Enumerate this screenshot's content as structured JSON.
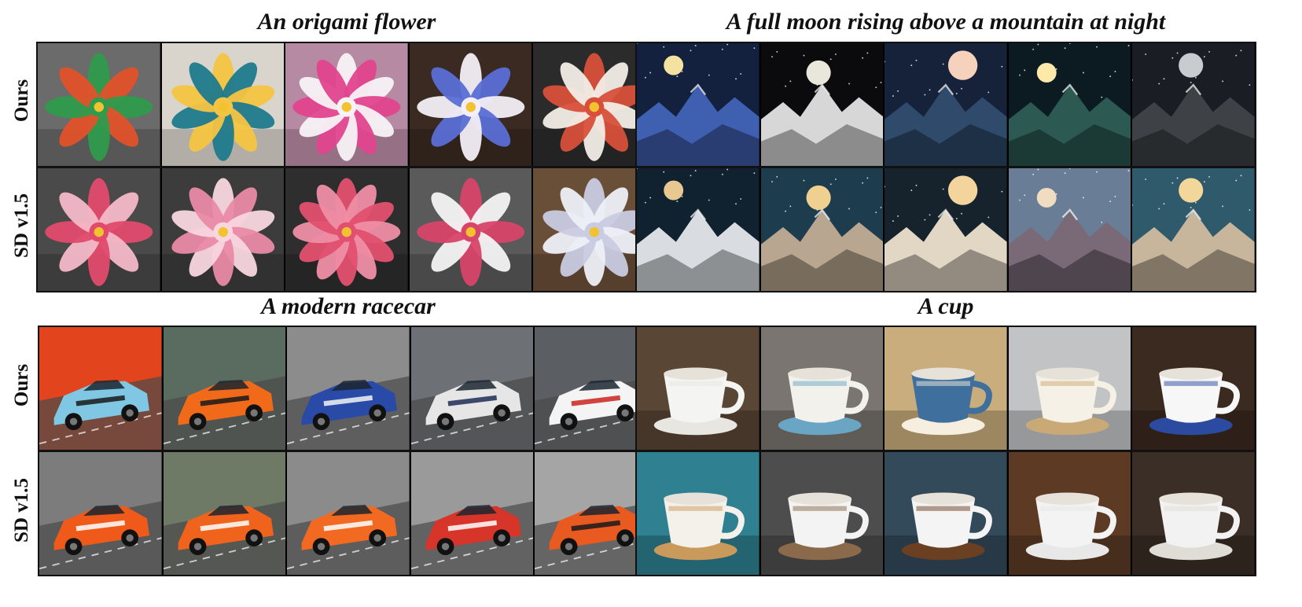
{
  "row_labels": {
    "ours": "Ours",
    "baseline": "SD v1.5"
  },
  "panels": [
    {
      "title": "An origami flower",
      "subject": "flower",
      "ours": [
        {
          "bg": "#6b6b6b",
          "fg": "#e0522a",
          "fg2": "#2f9b4d"
        },
        {
          "bg": "#d9d4cc",
          "fg": "#1f7a8c",
          "fg2": "#f4c542"
        },
        {
          "bg": "#b78aa4",
          "fg": "#e0448e",
          "fg2": "#f7f2f5"
        },
        {
          "bg": "#3a2a22",
          "fg": "#5a6fd6",
          "fg2": "#f3eef7"
        },
        {
          "bg": "#2b2b2b",
          "fg": "#f2ede6",
          "fg2": "#d8503a"
        }
      ],
      "baseline": [
        {
          "bg": "#4a4a4a",
          "fg": "#f4b8c8",
          "fg2": "#e24a6b"
        },
        {
          "bg": "#3c3c3c",
          "fg": "#e98aa6",
          "fg2": "#f8d6df"
        },
        {
          "bg": "#2e2e2e",
          "fg": "#ef8ea7",
          "fg2": "#e2506f"
        },
        {
          "bg": "#5a5a5a",
          "fg": "#f4f4f4",
          "fg2": "#d8456a"
        },
        {
          "bg": "#6a4f38",
          "fg": "#eef0f8",
          "fg2": "#c9cbe0"
        }
      ]
    },
    {
      "title": "A full moon rising above a mountain at night",
      "subject": "moon",
      "ours": [
        {
          "bg": "#13213f",
          "fg": "#3f5fb0",
          "fg2": "#f4e2a0"
        },
        {
          "bg": "#0b0b0d",
          "fg": "#d7d7d7",
          "fg2": "#e9e6dc"
        },
        {
          "bg": "#16213a",
          "fg": "#2f4a6b",
          "fg2": "#f6d2bc"
        },
        {
          "bg": "#0c1a22",
          "fg": "#2c5a52",
          "fg2": "#ffe9a8"
        },
        {
          "bg": "#1a1e24",
          "fg": "#3e4247",
          "fg2": "#c8ccd0"
        }
      ],
      "baseline": [
        {
          "bg": "#102230",
          "fg": "#d9dde2",
          "fg2": "#e8c890"
        },
        {
          "bg": "#1d3c4d",
          "fg": "#b8a690",
          "fg2": "#f0d090"
        },
        {
          "bg": "#16232d",
          "fg": "#e2d6c4",
          "fg2": "#f2d49c"
        },
        {
          "bg": "#6a7d96",
          "fg": "#7a6a78",
          "fg2": "#f0dcc0"
        },
        {
          "bg": "#2f5a6c",
          "fg": "#c7b69c",
          "fg2": "#f3d69a"
        }
      ]
    },
    {
      "title": "A modern racecar",
      "subject": "car",
      "ours": [
        {
          "bg": "#e2451d",
          "fg": "#7fc7e3",
          "fg2": "#1a1a1a"
        },
        {
          "bg": "#5a6b60",
          "fg": "#f06a1a",
          "fg2": "#1a1a1a"
        },
        {
          "bg": "#8c8c8c",
          "fg": "#2a4aa8",
          "fg2": "#f3f3f3"
        },
        {
          "bg": "#6d7075",
          "fg": "#e6e6e6",
          "fg2": "#1f2d55"
        },
        {
          "bg": "#5b5e62",
          "fg": "#f4f4f4",
          "fg2": "#c9231f"
        }
      ],
      "baseline": [
        {
          "bg": "#7c7c7c",
          "fg": "#ef5a1a",
          "fg2": "#ffffff"
        },
        {
          "bg": "#6e7a65",
          "fg": "#f0631d",
          "fg2": "#ffffff"
        },
        {
          "bg": "#8b8b8b",
          "fg": "#f26a22",
          "fg2": "#ffffff"
        },
        {
          "bg": "#9a9a9a",
          "fg": "#d8352a",
          "fg2": "#ffffff"
        },
        {
          "bg": "#a5a5a5",
          "fg": "#e85a20",
          "fg2": "#1a1a1a"
        }
      ]
    },
    {
      "title": "A cup",
      "subject": "cup",
      "ours": [
        {
          "bg": "#5a4635",
          "fg": "#f4f4f2",
          "fg2": "#e8e6e0"
        },
        {
          "bg": "#7a7570",
          "fg": "#f3f1ec",
          "fg2": "#6aa6c4"
        },
        {
          "bg": "#c9ad7c",
          "fg": "#3f6f9c",
          "fg2": "#f6eede"
        },
        {
          "bg": "#c2c3c5",
          "fg": "#f6f1e6",
          "fg2": "#c9aa76"
        },
        {
          "bg": "#3b2a20",
          "fg": "#f7f7f7",
          "fg2": "#2b4aa0"
        }
      ],
      "baseline": [
        {
          "bg": "#2f8090",
          "fg": "#f4f1ea",
          "fg2": "#c99a5c"
        },
        {
          "bg": "#4d4d4d",
          "fg": "#f3f3f3",
          "fg2": "#8a6a4a"
        },
        {
          "bg": "#324a5a",
          "fg": "#f4f4f4",
          "fg2": "#6b3f22"
        },
        {
          "bg": "#5c3a24",
          "fg": "#f3f3f3",
          "fg2": "#e8e8e8"
        },
        {
          "bg": "#3a2e26",
          "fg": "#f2f2f2",
          "fg2": "#e0ddd6"
        }
      ]
    }
  ]
}
